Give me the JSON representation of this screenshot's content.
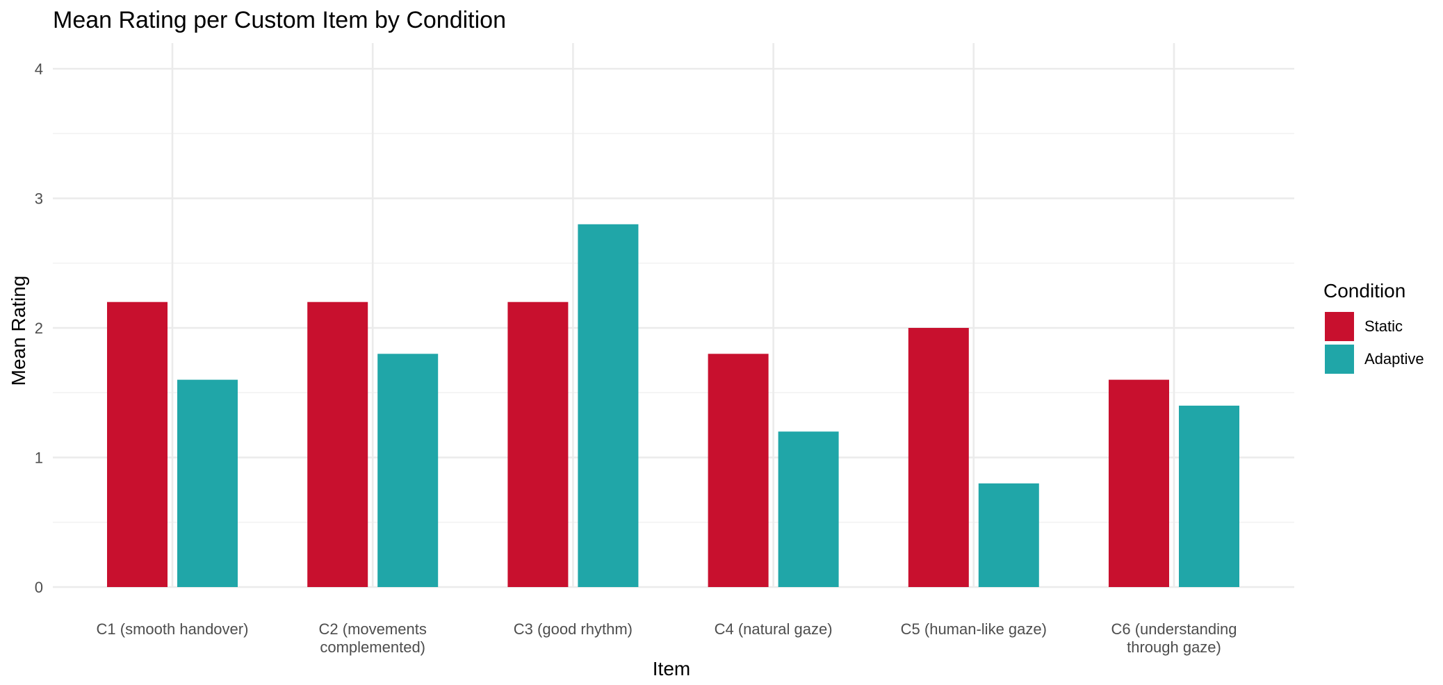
{
  "chart_data": {
    "type": "bar",
    "title": "Mean Rating per Custom Item by Condition",
    "xlabel": "Item",
    "ylabel": "Mean Rating",
    "ylim": [
      0,
      4
    ],
    "yticks": [
      0,
      1,
      2,
      3,
      4
    ],
    "grid": true,
    "legend": {
      "title": "Condition",
      "position": "right"
    },
    "categories": [
      [
        "C1 (smooth handover)"
      ],
      [
        "C2 (movements",
        "complemented)"
      ],
      [
        "C3 (good rhythm)"
      ],
      [
        "C4 (natural gaze)"
      ],
      [
        "C5 (human-like gaze)"
      ],
      [
        "C6 (understanding",
        "through gaze)"
      ]
    ],
    "series": [
      {
        "name": "Static",
        "color": "#c8102e",
        "values": [
          2.2,
          2.2,
          2.2,
          1.8,
          2.0,
          1.6
        ]
      },
      {
        "name": "Adaptive",
        "color": "#20a6a8",
        "values": [
          1.6,
          1.8,
          2.8,
          1.2,
          0.8,
          1.4
        ]
      }
    ]
  }
}
